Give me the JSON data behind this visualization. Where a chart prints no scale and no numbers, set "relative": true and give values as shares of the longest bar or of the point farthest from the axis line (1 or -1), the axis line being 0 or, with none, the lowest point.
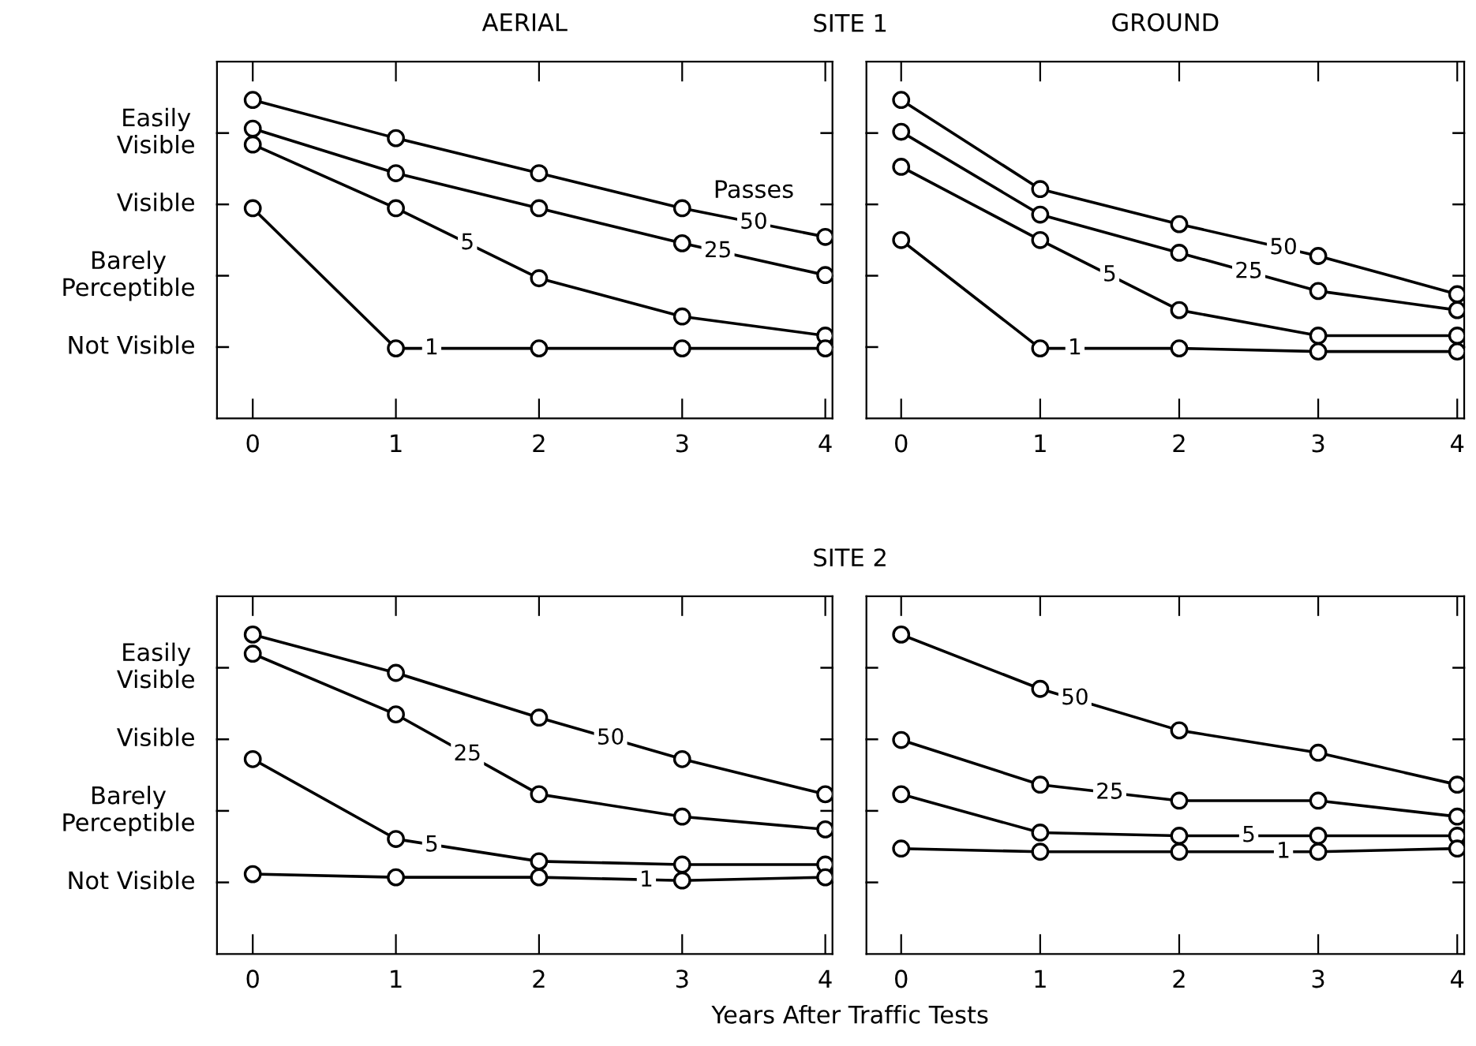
{
  "chart_data": [
    {
      "type": "line",
      "title": "AERIAL",
      "subtitle": "SITE 1",
      "x": [
        0,
        1,
        2,
        3,
        4
      ],
      "xlim": [
        -0.25,
        4.05
      ],
      "xticks": [
        0,
        1,
        2,
        3,
        4
      ],
      "relative": true,
      "marker": "circle",
      "legend_title": "Passes",
      "annotations": [
        "Not Visible",
        "Barely\nPerceptible",
        "Visible",
        "Easily\nVisible",
        {
          "text": "50",
          "x": 3.5,
          "y": 0.615
        },
        {
          "text": "25",
          "x": 3.25,
          "y": 0.525
        },
        {
          "text": "5",
          "x": 1.5,
          "y": 0.55
        },
        {
          "text": "1",
          "x": 1.25,
          "y": 0.22
        }
      ],
      "series": [
        {
          "color": "#000000",
          "values": [
            1,
            0.88,
            0.77,
            0.66,
            0.57
          ]
        },
        {
          "color": "#000000",
          "values": [
            0.91,
            0.77,
            0.66,
            0.55,
            0.45
          ]
        },
        {
          "color": "#000000",
          "values": [
            0.86,
            0.66,
            0.44,
            0.32,
            0.26
          ]
        },
        {
          "color": "#000000",
          "values": [
            0.66,
            0.22,
            0.22,
            0.22,
            0.22
          ]
        }
      ]
    },
    {
      "type": "line",
      "title": "GROUND",
      "x": [
        0,
        1,
        2,
        3,
        4
      ],
      "xlim": [
        -0.25,
        4.05
      ],
      "xticks": [
        0,
        1,
        2,
        3,
        4
      ],
      "relative": true,
      "marker": "circle",
      "annotations": [
        {
          "text": "25",
          "x": 2.5,
          "y": 0.46
        },
        {
          "text": "50",
          "x": 2.75,
          "y": 0.535
        },
        {
          "text": "5",
          "x": 1.5,
          "y": 0.45
        },
        {
          "text": "1",
          "x": 1.25,
          "y": 0.22
        }
      ],
      "series": [
        {
          "color": "#000000",
          "values": [
            1,
            0.72,
            0.61,
            0.51,
            0.39
          ]
        },
        {
          "color": "#000000",
          "values": [
            0.9,
            0.64,
            0.52,
            0.4,
            0.34
          ]
        },
        {
          "color": "#000000",
          "values": [
            0.79,
            0.56,
            0.34,
            0.26,
            0.26
          ]
        },
        {
          "color": "#000000",
          "values": [
            0.56,
            0.22,
            0.22,
            0.21,
            0.21
          ]
        }
      ]
    },
    {
      "type": "line",
      "subtitle": "SITE 2",
      "xlabel": "Years After Traffic Tests",
      "x": [
        0,
        1,
        2,
        3,
        4
      ],
      "xlim": [
        -0.25,
        4.05
      ],
      "xticks": [
        0,
        1,
        2,
        3,
        4
      ],
      "relative": true,
      "marker": "circle",
      "annotations": [
        "Not Visible",
        "Barely\nPerceptible",
        "Visible",
        "Easily\nVisible",
        {
          "text": "50",
          "x": 2.5,
          "y": 0.675
        },
        {
          "text": "25",
          "x": 1.5,
          "y": 0.625
        },
        {
          "text": "5",
          "x": 1.25,
          "y": 0.34
        },
        {
          "text": "1",
          "x": 2.75,
          "y": 0.23
        }
      ],
      "series": [
        {
          "color": "#000000",
          "values": [
            1,
            0.88,
            0.74,
            0.61,
            0.5
          ]
        },
        {
          "color": "#000000",
          "values": [
            0.94,
            0.75,
            0.5,
            0.43,
            0.39
          ]
        },
        {
          "color": "#000000",
          "values": [
            0.61,
            0.36,
            0.29,
            0.28,
            0.28
          ]
        },
        {
          "color": "#000000",
          "values": [
            0.25,
            0.24,
            0.24,
            0.23,
            0.24
          ]
        }
      ]
    },
    {
      "type": "line",
      "x": [
        0,
        1,
        2,
        3,
        4
      ],
      "xlim": [
        -0.25,
        4.05
      ],
      "xticks": [
        0,
        1,
        2,
        3,
        4
      ],
      "relative": true,
      "marker": "circle",
      "annotations": [
        {
          "text": "50",
          "x": 1.25,
          "y": 0.8
        },
        {
          "text": "25",
          "x": 1.5,
          "y": 0.505
        },
        {
          "text": "5",
          "x": 2.5,
          "y": 0.37
        },
        {
          "text": "1",
          "x": 2.75,
          "y": 0.32
        }
      ],
      "series": [
        {
          "color": "#000000",
          "values": [
            1,
            0.83,
            0.7,
            0.63,
            0.53
          ]
        },
        {
          "color": "#000000",
          "values": [
            0.67,
            0.53,
            0.48,
            0.48,
            0.43
          ]
        },
        {
          "color": "#000000",
          "values": [
            0.5,
            0.38,
            0.37,
            0.37,
            0.37
          ]
        },
        {
          "color": "#000000",
          "values": [
            0.33,
            0.32,
            0.32,
            0.32,
            0.33
          ]
        }
      ]
    }
  ]
}
